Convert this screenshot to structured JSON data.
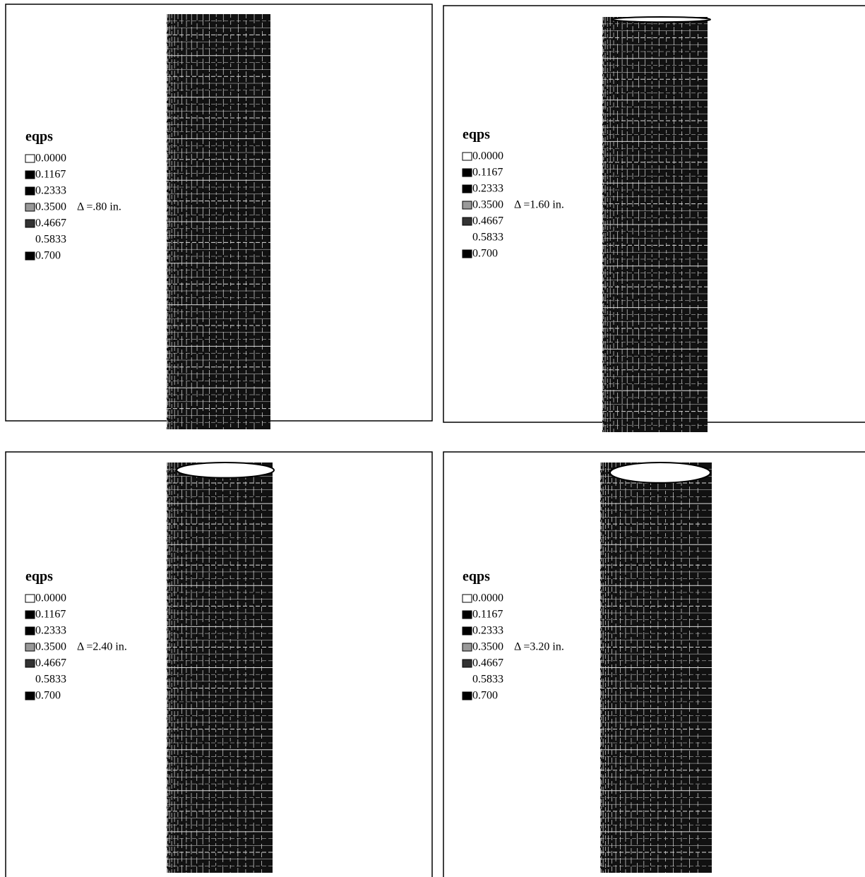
{
  "panels": [
    {
      "legend_title": "eqps",
      "levels": [
        "0.0000",
        "0.1167",
        "0.2333",
        "0.3500",
        "0.4667",
        "0.5833",
        "0.700"
      ],
      "displacement": "Δ =.80 in."
    },
    {
      "legend_title": "eqps",
      "levels": [
        "0.0000",
        "0.1167",
        "0.2333",
        "0.3500",
        "0.4667",
        "0.5833",
        "0.700"
      ],
      "displacement": "Δ =1.60 in."
    },
    {
      "legend_title": "eqps",
      "levels": [
        "0.0000",
        "0.1167",
        "0.2333",
        "0.3500",
        "0.4667",
        "0.5833",
        "0.700"
      ],
      "displacement": "Δ =2.40 in."
    },
    {
      "legend_title": "eqps",
      "levels": [
        "0.0000",
        "0.1167",
        "0.2333",
        "0.3500",
        "0.4667",
        "0.5833",
        "0.700"
      ],
      "displacement": "Δ =3.20 in."
    }
  ]
}
